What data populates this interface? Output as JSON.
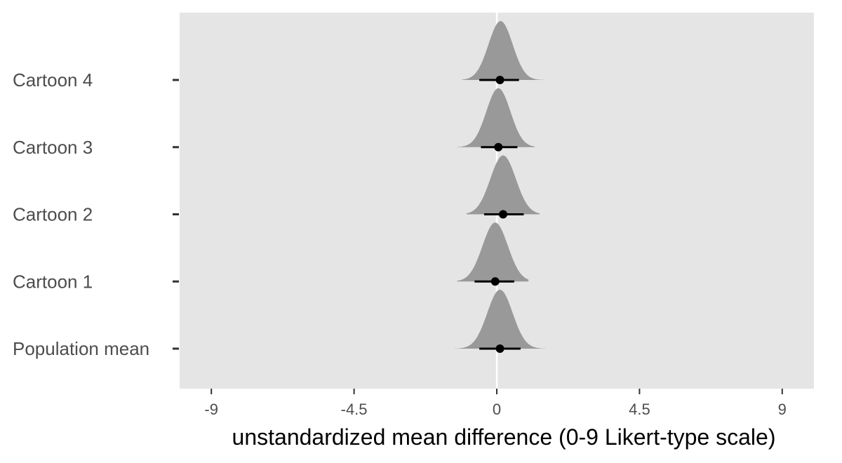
{
  "chart_data": {
    "type": "density-interval",
    "xlabel": "unstandardized mean difference (0-9 Likert-type scale)",
    "ylabel": "",
    "xlim": [
      -10,
      10
    ],
    "x_ticks": [
      -9,
      -4.5,
      0,
      4.5,
      9
    ],
    "x_tick_labels": [
      "-9",
      "-4.5",
      "0",
      "4.5",
      "9"
    ],
    "reference_line": 0,
    "grid": false,
    "legend": "none",
    "categories": [
      "Cartoon 4",
      "Cartoon 3",
      "Cartoon 2",
      "Cartoon 1",
      "Population mean"
    ],
    "series": [
      {
        "label": "Cartoon 4",
        "point": 0.1,
        "interval": [
          -0.55,
          0.7
        ],
        "density_center": 0.12,
        "density_sd": 0.38,
        "density_range": [
          -1.1,
          1.5
        ]
      },
      {
        "label": "Cartoon 3",
        "point": 0.05,
        "interval": [
          -0.5,
          0.65
        ],
        "density_center": 0.05,
        "density_sd": 0.38,
        "density_range": [
          -1.25,
          1.2
        ]
      },
      {
        "label": "Cartoon 2",
        "point": 0.2,
        "interval": [
          -0.4,
          0.85
        ],
        "density_center": 0.2,
        "density_sd": 0.4,
        "density_range": [
          -0.95,
          1.35
        ]
      },
      {
        "label": "Cartoon 1",
        "point": -0.05,
        "interval": [
          -0.7,
          0.55
        ],
        "density_center": -0.05,
        "density_sd": 0.4,
        "density_range": [
          -1.25,
          1.0
        ]
      },
      {
        "label": "Population mean",
        "point": 0.1,
        "interval": [
          -0.55,
          0.75
        ],
        "density_center": 0.1,
        "density_sd": 0.4,
        "density_range": [
          -1.35,
          1.55
        ]
      }
    ],
    "colors": {
      "panel_background": "#e5e5e5",
      "reference_line": "#ffffff",
      "density_fill": "#999999",
      "interval": "#000000",
      "point": "#000000",
      "tick": "#333333",
      "tick_label": "#4d4d4d"
    }
  }
}
